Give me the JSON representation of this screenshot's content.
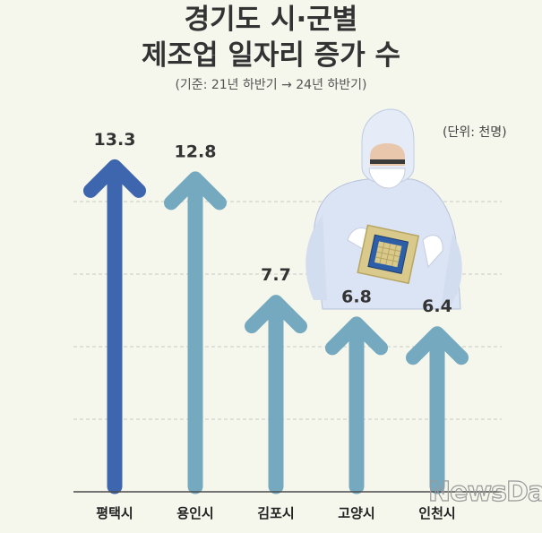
{
  "title_line1": "경기도 시·군별",
  "title_line2": "제조업 일자리 증가 수",
  "subtitle": "(기준: 21년 하반기 → 24년 하반기)",
  "unit_label": "(단위: 천명)",
  "watermark": "NewsDa",
  "colors": {
    "background": "#f5f6ec",
    "highlight_arrow": "#3e66ae",
    "arrow": "#74a9c0",
    "text": "#333333"
  },
  "chart_data": {
    "type": "bar",
    "categories": [
      "평택시",
      "용인시",
      "김포시",
      "고양시",
      "인천시"
    ],
    "values": [
      13.3,
      12.8,
      7.7,
      6.8,
      6.4
    ],
    "value_labels": [
      "13.3",
      "12.8",
      "7.7",
      "6.8",
      "6.4"
    ],
    "ylim": [
      0,
      15
    ],
    "grid": true,
    "highlight_index": 0
  }
}
